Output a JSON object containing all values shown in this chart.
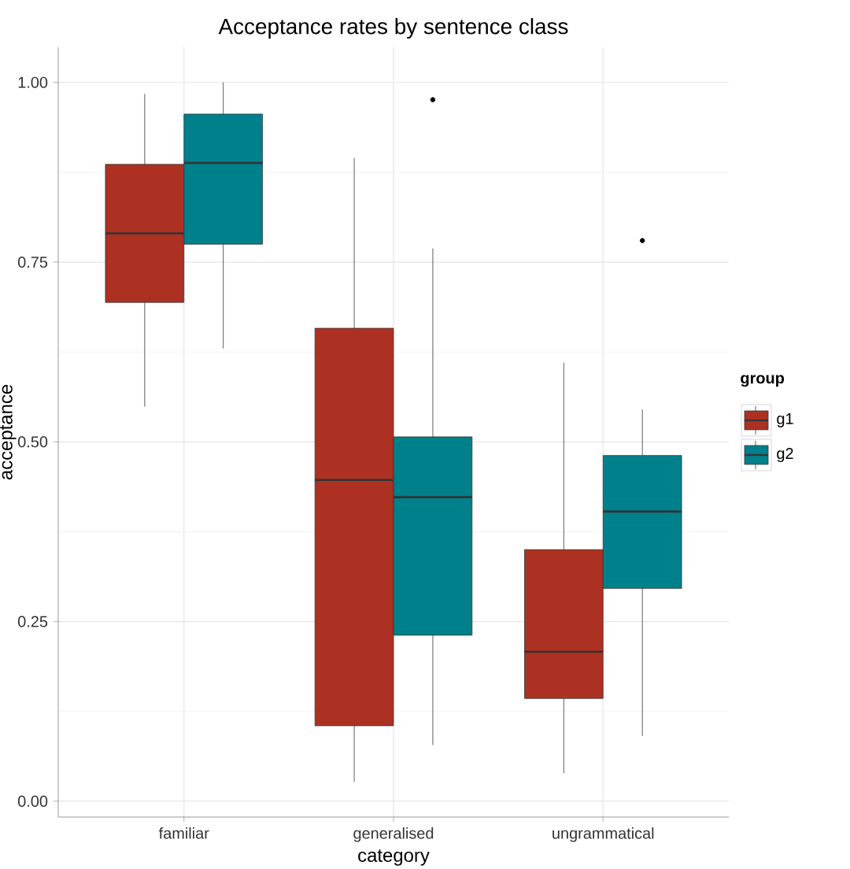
{
  "chart_data": {
    "type": "box",
    "title": "Acceptance rates by sentence class",
    "xlabel": "category",
    "ylabel": "acceptance",
    "legend_title": "group",
    "legend": "right",
    "grid": true,
    "categories": [
      "familiar",
      "generalised",
      "ungrammatical"
    ],
    "ylim": [
      -0.022,
      1.049
    ],
    "yticks": [
      {
        "value": 0,
        "label": "0.00"
      },
      {
        "value": 0.25,
        "label": "0.25"
      },
      {
        "value": 0.5,
        "label": "0.50"
      },
      {
        "value": 0.75,
        "label": "0.75"
      },
      {
        "value": 1,
        "label": "1.00"
      }
    ],
    "series": [
      {
        "name": "g1",
        "color": "#ad3122",
        "boxes": [
          {
            "low": 0.549,
            "q1": 0.694,
            "median": 0.79,
            "q3": 0.886,
            "high": 0.984
          },
          {
            "low": 0.027,
            "q1": 0.105,
            "median": 0.447,
            "q3": 0.658,
            "high": 0.895
          },
          {
            "low": 0.039,
            "q1": 0.143,
            "median": 0.208,
            "q3": 0.35,
            "high": 0.61
          }
        ]
      },
      {
        "name": "g2",
        "color": "#00808a",
        "boxes": [
          {
            "low": 0.63,
            "q1": 0.775,
            "median": 0.888,
            "q3": 0.956,
            "high": 1.0
          },
          {
            "low": 0.078,
            "q1": 0.231,
            "median": 0.423,
            "q3": 0.507,
            "high": 0.769,
            "outliers": [
              0.976
            ]
          },
          {
            "low": 0.091,
            "q1": 0.296,
            "median": 0.403,
            "q3": 0.481,
            "high": 0.545,
            "outliers": [
              0.78
            ]
          }
        ]
      }
    ]
  }
}
